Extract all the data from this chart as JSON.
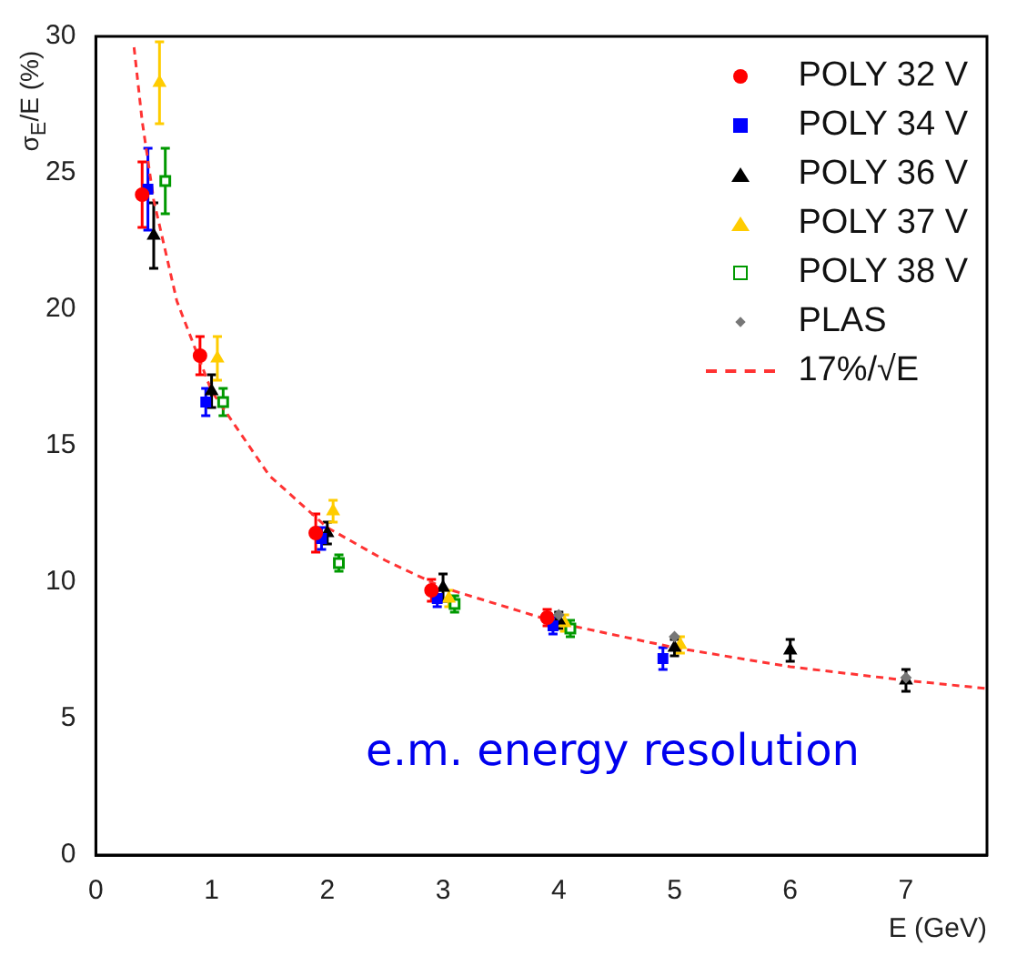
{
  "chart_data": {
    "type": "scatter",
    "xlabel": "E (GeV)",
    "ylabel": "σ$_{E}$/E (%)",
    "xlim": [
      0,
      7.7
    ],
    "ylim": [
      0,
      30
    ],
    "xticks": [
      0,
      1,
      2,
      3,
      4,
      5,
      6,
      7
    ],
    "yticks": [
      0,
      5,
      10,
      15,
      20,
      25,
      30
    ],
    "grid": false,
    "legend": "top right",
    "annotations": [
      "e.m. energy resolution"
    ],
    "series": [
      {
        "name": "POLY 32 V",
        "color": "#ff0000",
        "marker": "circle",
        "x": [
          0.4,
          0.9,
          1.9,
          2.9,
          3.9
        ],
        "values": [
          24.2,
          18.3,
          11.8,
          9.7,
          8.7
        ],
        "errors": [
          1.2,
          0.7,
          0.7,
          0.4,
          0.3
        ]
      },
      {
        "name": "POLY 34 V",
        "color": "#0000ff",
        "marker": "square",
        "x": [
          0.45,
          0.95,
          1.95,
          2.95,
          3.95,
          4.9
        ],
        "values": [
          24.4,
          16.6,
          11.6,
          9.4,
          8.4,
          7.2
        ],
        "errors": [
          1.5,
          0.5,
          0.4,
          0.3,
          0.3,
          0.4
        ]
      },
      {
        "name": "POLY 36 V",
        "color": "#000000",
        "marker": "triangle",
        "x": [
          0.5,
          1.0,
          2.0,
          3.0,
          4.0,
          5.0,
          6.0,
          7.0
        ],
        "values": [
          22.7,
          17.0,
          11.8,
          9.8,
          8.6,
          7.6,
          7.5,
          6.4
        ],
        "errors": [
          1.2,
          0.6,
          0.4,
          0.5,
          0.3,
          0.3,
          0.4,
          0.4
        ]
      },
      {
        "name": "POLY 37 V",
        "color": "#ffcc00",
        "marker": "triangle",
        "x": [
          0.55,
          1.05,
          2.05,
          3.05,
          4.05,
          5.05
        ],
        "values": [
          28.3,
          18.2,
          12.6,
          9.4,
          8.5,
          7.7
        ],
        "errors": [
          1.5,
          0.8,
          0.4,
          0.3,
          0.3,
          0.3
        ]
      },
      {
        "name": "POLY 38 V",
        "color": "#009900",
        "marker": "square",
        "x": [
          0.6,
          1.1,
          2.1,
          3.1,
          4.1
        ],
        "values": [
          24.7,
          16.6,
          10.7,
          9.2,
          8.3
        ],
        "errors": [
          1.2,
          0.5,
          0.3,
          0.3,
          0.3
        ]
      },
      {
        "name": "PLAS",
        "color": "#777777",
        "marker": "diamond",
        "x": [
          4.0,
          5.0,
          7.0
        ],
        "values": [
          8.8,
          8.0,
          6.5
        ]
      },
      {
        "name": "17%/√E",
        "type": "line",
        "color": "#ff3333",
        "line_style": "dashed",
        "marker": "none",
        "x": [
          0.33,
          0.4,
          0.5,
          0.7,
          1,
          1.5,
          2,
          2.5,
          3,
          4,
          5,
          6,
          7,
          7.7
        ],
        "values": [
          29.6,
          26.9,
          24.0,
          20.3,
          17.0,
          13.9,
          12.0,
          10.8,
          9.8,
          8.5,
          7.6,
          6.9,
          6.4,
          6.1
        ]
      }
    ]
  }
}
